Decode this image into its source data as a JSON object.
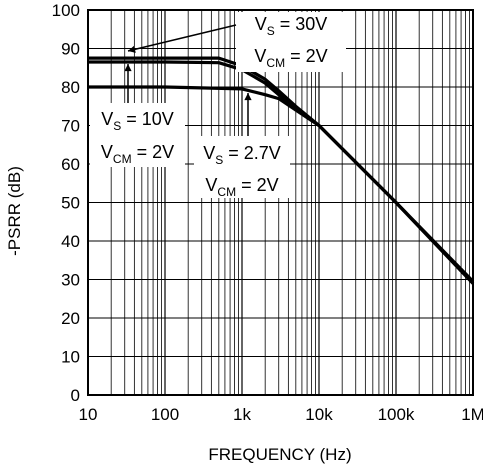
{
  "chart_data": {
    "type": "line",
    "title": "",
    "xlabel": "FREQUENCY (Hz)",
    "ylabel": "-PSRR (dB)",
    "xscale": "log",
    "xlim": [
      10,
      1000000
    ],
    "ylim": [
      0,
      100
    ],
    "grid": true,
    "x_ticks": [
      {
        "value": 10,
        "label": "10"
      },
      {
        "value": 100,
        "label": "100"
      },
      {
        "value": 1000,
        "label": "1k"
      },
      {
        "value": 10000,
        "label": "10k"
      },
      {
        "value": 100000,
        "label": "100k"
      },
      {
        "value": 1000000,
        "label": "1M"
      }
    ],
    "y_ticks": [
      {
        "value": 0,
        "label": "0"
      },
      {
        "value": 10,
        "label": "10"
      },
      {
        "value": 20,
        "label": "20"
      },
      {
        "value": 30,
        "label": "30"
      },
      {
        "value": 40,
        "label": "40"
      },
      {
        "value": 50,
        "label": "50"
      },
      {
        "value": 60,
        "label": "60"
      },
      {
        "value": 70,
        "label": "70"
      },
      {
        "value": 80,
        "label": "80"
      },
      {
        "value": 90,
        "label": "90"
      },
      {
        "value": 100,
        "label": "100"
      }
    ],
    "series": [
      {
        "x": [
          10,
          100,
          500,
          1000,
          2000,
          3000,
          5000,
          10000,
          100000,
          1000000
        ],
        "y": [
          87.5,
          87.5,
          87.5,
          85.5,
          82,
          79,
          75,
          70,
          50,
          29.5
        ]
      },
      {
        "x": [
          10,
          100,
          500,
          1000,
          2000,
          3000,
          5000,
          10000,
          100000,
          1000000
        ],
        "y": [
          86.5,
          86.5,
          86.3,
          84.5,
          81,
          78,
          74.5,
          70,
          50,
          29
        ]
      },
      {
        "x": [
          10,
          100,
          1000,
          2000,
          3000,
          5000,
          10000,
          100000,
          1000000
        ],
        "y": [
          80,
          80,
          79.5,
          78,
          77,
          74,
          70,
          50,
          29
        ]
      }
    ],
    "annotations": [
      {
        "id": "vs30",
        "vs": "V",
        "vs_sub": "S",
        "vs_val": " = 30V",
        "vcm": "V",
        "vcm_sub": "CM",
        "vcm_val": " = 2V"
      },
      {
        "id": "vs10",
        "vs": "V",
        "vs_sub": "S",
        "vs_val": " = 10V",
        "vcm": "V",
        "vcm_sub": "CM",
        "vcm_val": " = 2V"
      },
      {
        "id": "vs27",
        "vs": "V",
        "vs_sub": "S",
        "vs_val": " = 2.7V",
        "vcm": "V",
        "vcm_sub": "CM",
        "vcm_val": " = 2V"
      }
    ]
  }
}
